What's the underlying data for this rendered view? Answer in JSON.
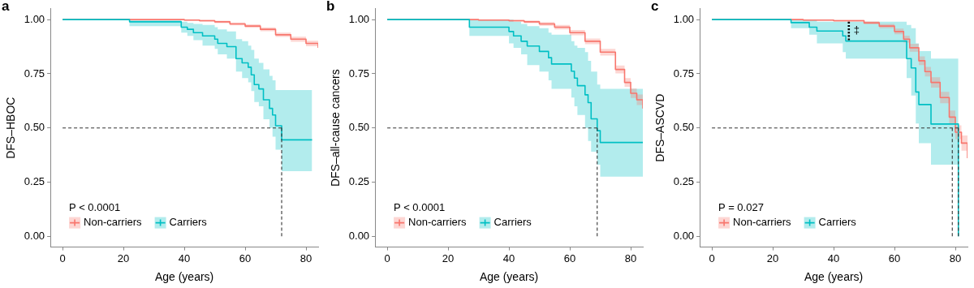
{
  "chart_data": [
    {
      "type": "step",
      "title": "a",
      "xlabel": "Age (years)",
      "ylabel": "DFS–HBOC",
      "annotations": [
        "P < 0.0001"
      ],
      "legend": "bottom left",
      "xlim": [
        -4,
        84
      ],
      "xticks": [
        0,
        20,
        40,
        60,
        80
      ],
      "ylim": [
        -0.05,
        1.05
      ],
      "yticks": [
        {
          "value": 0,
          "label": "0.00"
        },
        {
          "value": 0.25,
          "label": "0.25"
        },
        {
          "value": 0.5,
          "label": "0.50"
        },
        {
          "value": 0.75,
          "label": "0.75"
        },
        {
          "value": 1,
          "label": "1.00"
        }
      ],
      "series": [
        {
          "name": "Non-carriers",
          "color": "#f8766d",
          "x": [
            0,
            40,
            45,
            50,
            55,
            60,
            65,
            70,
            75,
            80,
            84
          ],
          "values": [
            1,
            0.998,
            0.995,
            0.99,
            0.98,
            0.97,
            0.955,
            0.93,
            0.91,
            0.89,
            0.87
          ],
          "lower": [
            1,
            0.995,
            0.99,
            0.984,
            0.973,
            0.962,
            0.946,
            0.92,
            0.898,
            0.877,
            0.855
          ],
          "upper": [
            1,
            1,
            0.999,
            0.995,
            0.987,
            0.978,
            0.964,
            0.94,
            0.921,
            0.902,
            0.884
          ]
        },
        {
          "name": "Carriers",
          "color": "#00bfc4",
          "x": [
            0,
            22,
            39,
            41,
            43,
            46,
            50,
            51,
            54,
            57,
            59,
            61,
            62,
            63,
            64.5,
            66,
            68,
            69,
            70,
            72,
            82
          ],
          "values": [
            1,
            0.99,
            0.965,
            0.955,
            0.94,
            0.925,
            0.91,
            0.89,
            0.875,
            0.82,
            0.8,
            0.78,
            0.745,
            0.7,
            0.68,
            0.63,
            0.59,
            0.56,
            0.51,
            0.445,
            0.445
          ],
          "lower": [
            1,
            0.97,
            0.94,
            0.925,
            0.905,
            0.88,
            0.865,
            0.84,
            0.82,
            0.76,
            0.73,
            0.71,
            0.67,
            0.62,
            0.6,
            0.54,
            0.5,
            0.46,
            0.4,
            0.3,
            0.3
          ],
          "upper": [
            1,
            1,
            0.99,
            0.985,
            0.98,
            0.975,
            0.965,
            0.955,
            0.945,
            0.91,
            0.9,
            0.88,
            0.86,
            0.82,
            0.8,
            0.77,
            0.74,
            0.72,
            0.675,
            0.675,
            0.675
          ]
        },
        {
          "type": "line",
          "line_style": "dashed",
          "color": "#333333",
          "x": [
            0,
            72,
            72
          ],
          "values": [
            0.5,
            0.5,
            0
          ]
        }
      ]
    },
    {
      "type": "step",
      "title": "b",
      "xlabel": "Age (years)",
      "ylabel": "DFS–all-cause cancers",
      "annotations": [
        "P < 0.0001"
      ],
      "legend": "bottom left",
      "xlim": [
        -4,
        84
      ],
      "xticks": [
        0,
        20,
        40,
        60,
        80
      ],
      "ylim": [
        -0.05,
        1.05
      ],
      "yticks": [
        {
          "value": 0,
          "label": "0.00"
        },
        {
          "value": 0.25,
          "label": "0.25"
        },
        {
          "value": 0.5,
          "label": "0.50"
        },
        {
          "value": 0.75,
          "label": "0.75"
        },
        {
          "value": 1,
          "label": "1.00"
        }
      ],
      "series": [
        {
          "name": "Non-carriers",
          "color": "#f8766d",
          "x": [
            0,
            30,
            40,
            45,
            50,
            55,
            60,
            65,
            70,
            75,
            78,
            80,
            82,
            84
          ],
          "values": [
            1,
            0.998,
            0.995,
            0.99,
            0.98,
            0.965,
            0.94,
            0.9,
            0.85,
            0.77,
            0.71,
            0.66,
            0.63,
            0.59
          ],
          "lower": [
            1,
            0.995,
            0.99,
            0.984,
            0.972,
            0.955,
            0.928,
            0.886,
            0.834,
            0.752,
            0.69,
            0.638,
            0.606,
            0.564
          ],
          "upper": [
            1,
            1,
            0.999,
            0.996,
            0.988,
            0.975,
            0.952,
            0.913,
            0.865,
            0.788,
            0.73,
            0.682,
            0.654,
            0.616
          ]
        },
        {
          "name": "Carriers",
          "color": "#00bfc4",
          "x": [
            0,
            27,
            40,
            41.5,
            44,
            46,
            50,
            53,
            54,
            60.5,
            61.5,
            62.5,
            65,
            66,
            67,
            69,
            70,
            84
          ],
          "values": [
            1,
            0.965,
            0.945,
            0.925,
            0.9,
            0.878,
            0.853,
            0.824,
            0.795,
            0.762,
            0.73,
            0.695,
            0.653,
            0.617,
            0.542,
            0.487,
            0.433,
            0.433
          ],
          "lower": [
            1,
            0.925,
            0.89,
            0.87,
            0.84,
            0.79,
            0.76,
            0.72,
            0.68,
            0.64,
            0.6,
            0.56,
            0.5,
            0.44,
            0.39,
            0.33,
            0.275,
            0.275
          ],
          "upper": [
            1,
            1,
            1,
            0.99,
            0.98,
            0.97,
            0.96,
            0.94,
            0.93,
            0.9,
            0.88,
            0.87,
            0.85,
            0.81,
            0.76,
            0.7,
            0.68,
            0.68
          ]
        },
        {
          "type": "line",
          "line_style": "dashed",
          "color": "#333333",
          "x": [
            0,
            69,
            69
          ],
          "values": [
            0.5,
            0.5,
            0
          ]
        }
      ]
    },
    {
      "type": "step",
      "title": "c",
      "xlabel": "Age (years)",
      "ylabel": "DFS–ASCVD",
      "annotations": [
        "P = 0.027",
        {
          "text": "‡",
          "x": 45,
          "y": 0.95
        }
      ],
      "legend": "bottom left",
      "xlim": [
        -4,
        84
      ],
      "xticks": [
        0,
        20,
        40,
        60,
        80
      ],
      "ylim": [
        -0.05,
        1.05
      ],
      "yticks": [
        {
          "value": 0,
          "label": "0.00"
        },
        {
          "value": 0.25,
          "label": "0.25"
        },
        {
          "value": 0.5,
          "label": "0.50"
        },
        {
          "value": 0.75,
          "label": "0.75"
        },
        {
          "value": 1,
          "label": "1.00"
        }
      ],
      "series": [
        {
          "name": "Non-carriers",
          "color": "#f8766d",
          "x": [
            0,
            30,
            40,
            50,
            55,
            60,
            63,
            65,
            68,
            70,
            72,
            75,
            78,
            80,
            82,
            84
          ],
          "values": [
            1,
            0.998,
            0.995,
            0.985,
            0.97,
            0.945,
            0.91,
            0.87,
            0.81,
            0.76,
            0.71,
            0.64,
            0.55,
            0.48,
            0.43,
            0.36
          ],
          "lower": [
            1,
            0.995,
            0.99,
            0.978,
            0.96,
            0.932,
            0.894,
            0.852,
            0.79,
            0.738,
            0.686,
            0.614,
            0.52,
            0.448,
            0.395,
            0.32
          ],
          "upper": [
            1,
            1,
            0.999,
            0.992,
            0.98,
            0.958,
            0.926,
            0.888,
            0.83,
            0.782,
            0.734,
            0.666,
            0.58,
            0.512,
            0.465,
            0.4
          ]
        },
        {
          "name": "Carriers",
          "color": "#00bfc4",
          "x": [
            0,
            26,
            32,
            34.5,
            43,
            44,
            64,
            65.5,
            67,
            68,
            72,
            81
          ],
          "values": [
            1,
            0.986,
            0.965,
            0.947,
            0.925,
            0.901,
            0.82,
            0.777,
            0.666,
            0.608,
            0.518,
            0
          ],
          "lower": [
            1,
            0.96,
            0.93,
            0.89,
            0.85,
            0.82,
            0.73,
            0.65,
            0.52,
            0.43,
            0.33,
            0.33
          ],
          "upper": [
            1,
            1,
            1,
            0.99,
            0.99,
            0.99,
            0.975,
            0.96,
            0.89,
            0.855,
            0.82,
            0.82
          ]
        },
        {
          "type": "line",
          "line_style": "dashed",
          "color": "#333333",
          "x": [
            0,
            81,
            81
          ],
          "values": [
            0.5,
            0.5,
            0
          ]
        },
        {
          "type": "line",
          "line_style": "dashed",
          "color": "#333333",
          "x": [
            79,
            79
          ],
          "values": [
            0.5,
            0
          ]
        },
        {
          "type": "line",
          "line_style": "dotted",
          "color": "#000000",
          "x": [
            45,
            45
          ],
          "values": [
            0.905,
            0.99
          ]
        }
      ]
    }
  ]
}
